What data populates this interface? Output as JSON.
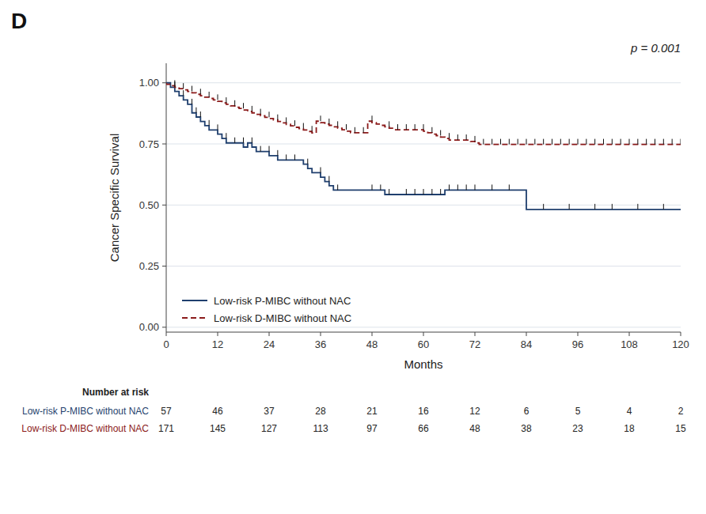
{
  "chart_data": {
    "type": "step",
    "title": "D",
    "annotations": [
      "p = 0.001"
    ],
    "x_label": "Months",
    "y_label": "Cancer Specific Survival",
    "xlim": [
      0,
      120
    ],
    "ylim": [
      -0.02,
      1.08
    ],
    "xticks": [
      0,
      12,
      24,
      36,
      48,
      60,
      72,
      84,
      96,
      108,
      120
    ],
    "yticks": [
      {
        "value": 0.0,
        "label": "0.00"
      },
      {
        "value": 0.25,
        "label": "0.25"
      },
      {
        "value": 0.5,
        "label": "0.50"
      },
      {
        "value": 0.75,
        "label": "0.75"
      },
      {
        "value": 1.0,
        "label": "1.00"
      }
    ],
    "grid": "y",
    "legend": "lower left",
    "x": [
      0,
      1,
      2,
      3,
      4,
      5,
      6,
      7,
      8,
      9,
      10,
      11,
      12,
      13,
      14,
      15,
      16,
      17,
      18,
      19,
      20,
      21,
      22,
      23,
      24,
      25,
      26,
      27,
      28,
      29,
      30,
      31,
      32,
      33,
      34,
      35,
      36,
      37,
      38,
      39,
      40,
      41,
      42,
      43,
      44,
      45,
      46,
      47,
      48,
      49,
      50,
      51,
      52,
      53,
      54,
      55,
      56,
      57,
      58,
      59,
      60,
      61,
      62,
      63,
      64,
      65,
      66,
      67,
      68,
      69,
      70,
      71,
      72,
      73,
      74,
      75,
      76,
      77,
      78,
      79,
      80,
      81,
      82,
      83,
      84,
      85,
      86,
      87,
      88,
      89,
      90,
      91,
      92,
      93,
      94,
      95,
      96,
      97,
      98,
      99,
      100,
      101,
      102,
      103,
      104,
      105,
      106,
      107,
      108,
      109,
      110,
      111,
      112,
      113,
      114,
      115,
      116,
      117,
      118,
      119,
      120
    ],
    "at_risk_label": "Number at risk",
    "at_risk_times": [
      0,
      12,
      24,
      36,
      48,
      60,
      72,
      84,
      96,
      108,
      120
    ],
    "series": [
      {
        "name": "Low-risk P-MIBC without NAC",
        "color": "#1f3f6e",
        "line_style": "solid",
        "values": [
          1.0,
          1.0,
          0.982,
          0.965,
          0.947,
          0.93,
          0.912,
          0.877,
          0.86,
          0.842,
          0.825,
          0.807,
          0.807,
          0.79,
          0.772,
          0.754,
          0.754,
          0.754,
          0.754,
          0.737,
          0.754,
          0.737,
          0.719,
          0.719,
          0.719,
          0.702,
          0.702,
          0.684,
          0.684,
          0.684,
          0.684,
          0.684,
          0.684,
          0.667,
          0.649,
          0.632,
          0.632,
          0.614,
          0.596,
          0.579,
          0.561,
          0.561,
          0.561,
          0.561,
          0.561,
          0.561,
          0.561,
          0.561,
          0.561,
          0.561,
          0.561,
          0.561,
          0.543,
          0.543,
          0.543,
          0.543,
          0.543,
          0.543,
          0.543,
          0.543,
          0.543,
          0.543,
          0.543,
          0.543,
          0.543,
          0.543,
          0.561,
          0.561,
          0.561,
          0.561,
          0.561,
          0.561,
          0.561,
          0.561,
          0.561,
          0.561,
          0.561,
          0.561,
          0.561,
          0.561,
          0.561,
          0.561,
          0.561,
          0.561,
          0.561,
          0.482,
          0.482,
          0.482,
          0.482,
          0.482,
          0.482,
          0.482,
          0.482,
          0.482,
          0.482,
          0.482,
          0.482,
          0.482,
          0.482,
          0.482,
          0.482,
          0.482,
          0.482,
          0.482,
          0.482,
          0.482,
          0.482,
          0.482,
          0.482,
          0.482,
          0.482,
          0.482,
          0.482,
          0.482,
          0.482,
          0.482,
          0.482,
          0.482,
          0.482,
          0.482,
          0.482
        ],
        "censors_x": [
          2,
          4,
          6,
          7,
          8,
          10,
          12,
          14,
          16,
          18,
          20,
          22,
          24,
          26,
          28,
          30,
          33,
          36,
          38,
          40,
          48,
          50,
          52,
          56,
          58,
          60,
          62,
          64,
          66,
          68,
          70,
          72,
          76,
          80,
          88,
          94,
          100,
          104,
          110,
          116
        ],
        "at_risk": [
          57,
          46,
          37,
          28,
          21,
          16,
          12,
          6,
          5,
          4,
          2
        ]
      },
      {
        "name": "Low-risk D-MIBC without NAC",
        "color": "#8b1a1a",
        "line_style": "dashed",
        "values": [
          1.0,
          0.994,
          0.988,
          0.982,
          0.976,
          0.971,
          0.965,
          0.959,
          0.953,
          0.947,
          0.941,
          0.936,
          0.93,
          0.924,
          0.918,
          0.912,
          0.906,
          0.9,
          0.895,
          0.889,
          0.883,
          0.877,
          0.871,
          0.865,
          0.859,
          0.854,
          0.848,
          0.842,
          0.836,
          0.83,
          0.824,
          0.818,
          0.813,
          0.807,
          0.801,
          0.795,
          0.843,
          0.837,
          0.831,
          0.826,
          0.82,
          0.814,
          0.808,
          0.802,
          0.796,
          0.796,
          0.796,
          0.796,
          0.843,
          0.837,
          0.831,
          0.826,
          0.82,
          0.814,
          0.808,
          0.808,
          0.808,
          0.808,
          0.808,
          0.808,
          0.808,
          0.802,
          0.796,
          0.79,
          0.784,
          0.778,
          0.772,
          0.766,
          0.766,
          0.766,
          0.766,
          0.766,
          0.76,
          0.754,
          0.748,
          0.748,
          0.748,
          0.748,
          0.748,
          0.748,
          0.748,
          0.748,
          0.748,
          0.748,
          0.748,
          0.748,
          0.748,
          0.748,
          0.748,
          0.748,
          0.748,
          0.748,
          0.748,
          0.748,
          0.748,
          0.748,
          0.748,
          0.748,
          0.748,
          0.748,
          0.748,
          0.748,
          0.748,
          0.748,
          0.748,
          0.748,
          0.748,
          0.748,
          0.748,
          0.748,
          0.748,
          0.748,
          0.748,
          0.748,
          0.748,
          0.748,
          0.748,
          0.748,
          0.748,
          0.748,
          0.748
        ],
        "censors_x": [
          2,
          4,
          6,
          8,
          10,
          12,
          14,
          16,
          18,
          20,
          22,
          24,
          26,
          28,
          30,
          32,
          34,
          36,
          38,
          40,
          42,
          44,
          46,
          48,
          52,
          54,
          56,
          58,
          60,
          62,
          64,
          66,
          68,
          70,
          72,
          74,
          76,
          78,
          80,
          82,
          84,
          86,
          88,
          90,
          92,
          94,
          96,
          98,
          100,
          102,
          104,
          106,
          108,
          110,
          112,
          114,
          116,
          118,
          120
        ],
        "at_risk": [
          171,
          145,
          127,
          113,
          97,
          66,
          48,
          38,
          23,
          18,
          15
        ]
      }
    ]
  }
}
